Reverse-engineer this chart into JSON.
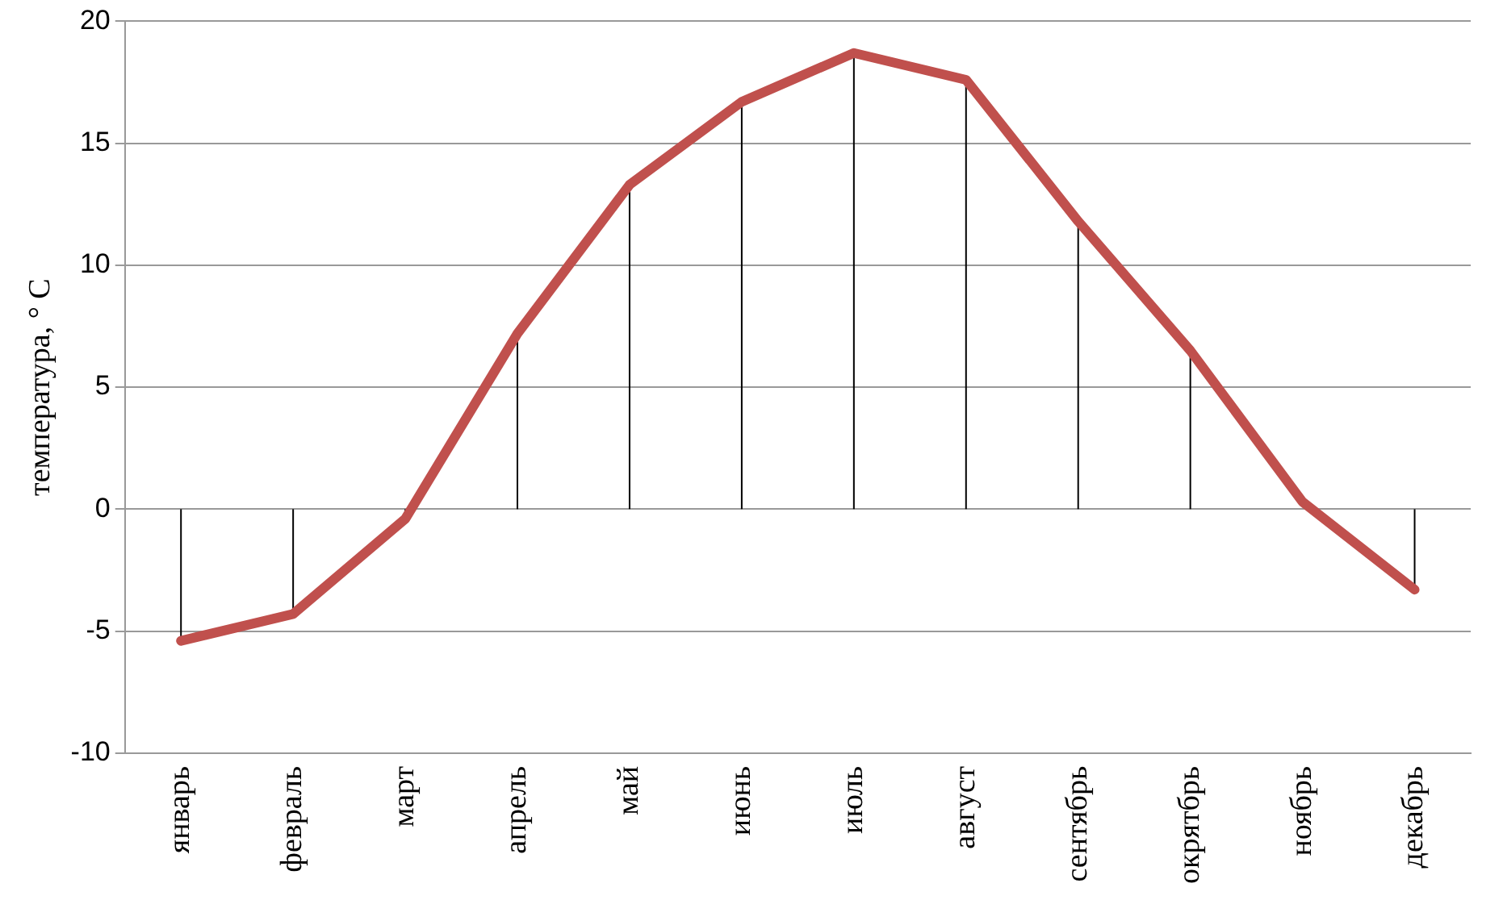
{
  "chart_data": {
    "type": "line",
    "ylabel": "температура, ° C",
    "categories": [
      "январь",
      "февраль",
      "март",
      "апрель",
      "май",
      "июнь",
      "июль",
      "август",
      "сентябрь",
      "окрятбрь",
      "ноябрь",
      "декабрь"
    ],
    "series": [
      {
        "color": "#c0504d",
        "values": [
          -5.4,
          -4.3,
          -0.4,
          7.2,
          13.3,
          16.7,
          18.7,
          17.6,
          11.8,
          6.5,
          0.3,
          -3.3
        ],
        "errors": [
          [
            -5.4,
            0
          ],
          [
            -4.3,
            0
          ],
          [
            -0.4,
            0
          ],
          [
            0,
            7.2
          ],
          [
            0,
            13.3
          ],
          [
            0,
            16.7
          ],
          [
            0,
            18.7
          ],
          [
            0,
            17.6
          ],
          [
            0,
            11.8
          ],
          [
            0,
            6.5
          ],
          null,
          [
            -3.3,
            0
          ]
        ]
      }
    ],
    "ylim": [
      -10,
      20
    ],
    "yticks": [
      -10,
      -5,
      0,
      5,
      10,
      15,
      20
    ],
    "grid": "y",
    "legend": false,
    "marker": "none",
    "line_style": "solid"
  }
}
